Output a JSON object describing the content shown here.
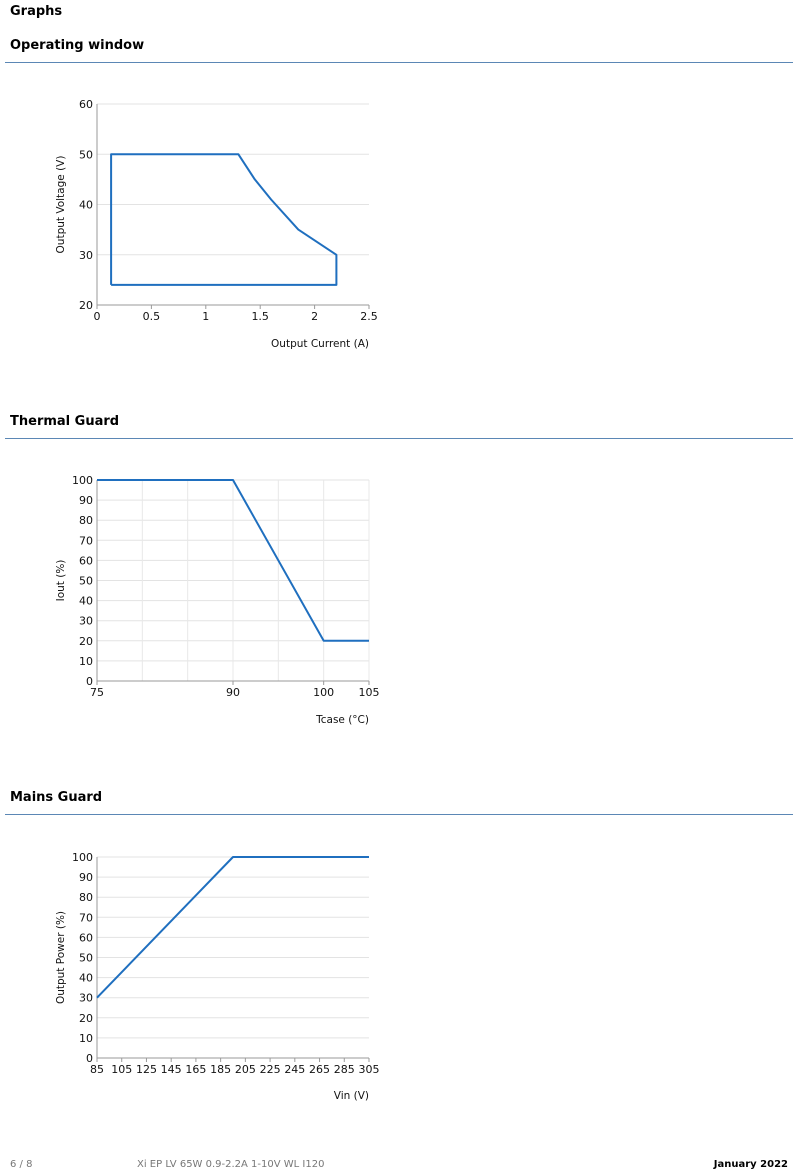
{
  "page_title": "Graphs",
  "sections": [
    {
      "heading": "Operating window"
    },
    {
      "heading": "Thermal Guard"
    },
    {
      "heading": "Mains Guard"
    }
  ],
  "chart_data": [
    {
      "type": "line",
      "title": "",
      "xlabel": "Output Current (A)",
      "ylabel": "Output Voltage (V)",
      "xlim": [
        0,
        2.5
      ],
      "ylim": [
        20,
        60
      ],
      "xticks": [
        "0",
        "0.5",
        "1",
        "1.5",
        "2",
        "2.5"
      ],
      "xtick_values": [
        0,
        0.5,
        1,
        1.5,
        2,
        2.5
      ],
      "yticks": [
        "20",
        "30",
        "40",
        "50",
        "60"
      ],
      "ytick_values": [
        20,
        30,
        40,
        50,
        60
      ],
      "grid": "horizontal",
      "series": [
        {
          "x": [
            0.13,
            0.13,
            1.3,
            1.45,
            1.6,
            1.85,
            2.2,
            2.2,
            0.13
          ],
          "y": [
            24,
            50,
            50,
            45,
            41,
            35,
            30,
            24,
            24
          ]
        }
      ]
    },
    {
      "type": "line",
      "title": "",
      "xlabel": "Tcase (°C)",
      "ylabel": "Iout (%)",
      "xlim": [
        75,
        105
      ],
      "ylim": [
        0,
        100
      ],
      "xticks": [
        "75",
        "90",
        "100",
        "105"
      ],
      "xtick_values": [
        75,
        90,
        100,
        105
      ],
      "vgrid_values": [
        80,
        85,
        90,
        95,
        100,
        105
      ],
      "yticks": [
        "0",
        "10",
        "20",
        "30",
        "40",
        "50",
        "60",
        "70",
        "80",
        "90",
        "100"
      ],
      "ytick_values": [
        0,
        10,
        20,
        30,
        40,
        50,
        60,
        70,
        80,
        90,
        100
      ],
      "grid": "both",
      "series": [
        {
          "x": [
            75,
            90,
            100,
            105
          ],
          "y": [
            100,
            100,
            20,
            20
          ]
        }
      ]
    },
    {
      "type": "line",
      "title": "",
      "xlabel": "Vin (V)",
      "ylabel": "Output Power (%)",
      "xlim": [
        85,
        305
      ],
      "ylim": [
        0,
        100
      ],
      "xticks": [
        "85",
        "105",
        "125",
        "145",
        "165",
        "185",
        "205",
        "225",
        "245",
        "265",
        "285",
        "305"
      ],
      "xtick_values": [
        85,
        105,
        125,
        145,
        165,
        185,
        205,
        225,
        245,
        265,
        285,
        305
      ],
      "yticks": [
        "0",
        "10",
        "20",
        "30",
        "40",
        "50",
        "60",
        "70",
        "80",
        "90",
        "100"
      ],
      "ytick_values": [
        0,
        10,
        20,
        30,
        40,
        50,
        60,
        70,
        80,
        90,
        100
      ],
      "grid": "horizontal",
      "series": [
        {
          "x": [
            85,
            195,
            305
          ],
          "y": [
            30,
            100,
            100
          ]
        }
      ]
    }
  ],
  "footer": {
    "page_number": "6 / 8",
    "product": "Xi EP LV 65W 0.9-2.2A 1-10V WL I120",
    "date": "January 2022"
  },
  "colors": {
    "series": "#1f6fbf",
    "rule": "#5b87b5"
  }
}
